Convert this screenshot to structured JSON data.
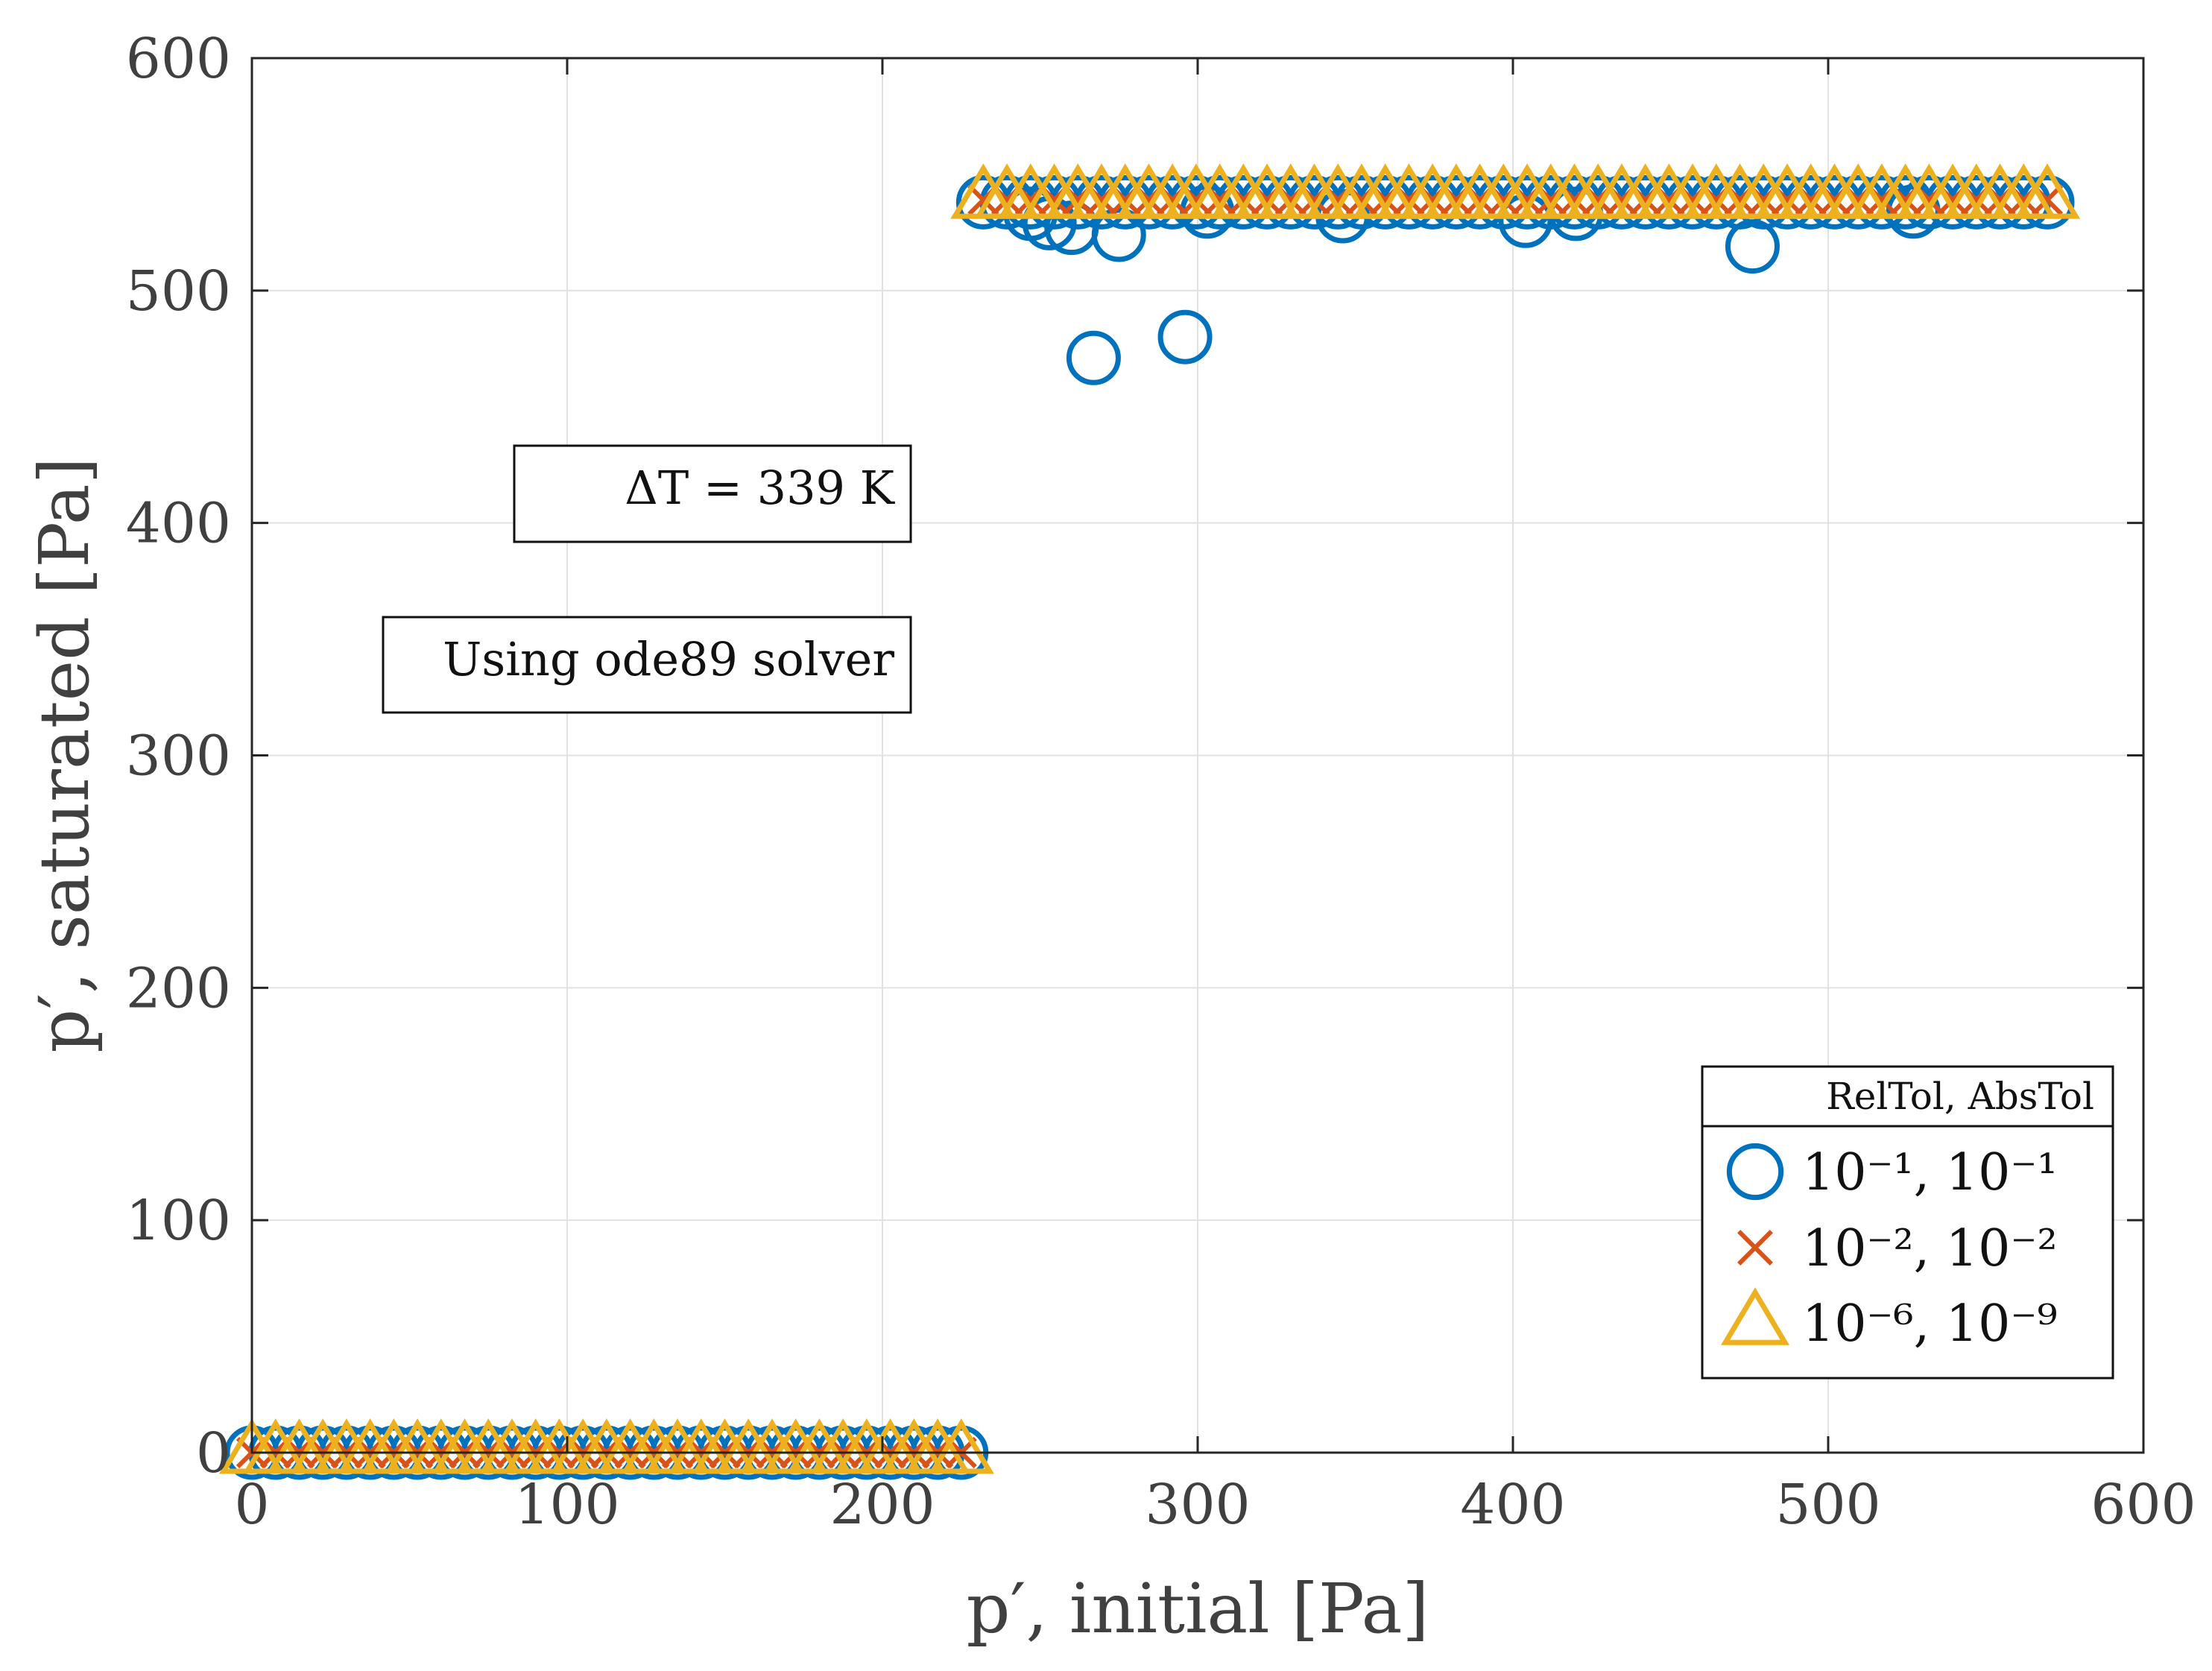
{
  "chart_data": {
    "type": "scatter",
    "xlabel": "p′, initial [Pa]",
    "ylabel": "p′, saturated [Pa]",
    "xlim": [
      0,
      600
    ],
    "ylim": [
      0,
      600
    ],
    "xticks": [
      0,
      100,
      200,
      300,
      400,
      500,
      600
    ],
    "yticks": [
      0,
      100,
      200,
      300,
      400,
      500,
      600
    ],
    "xtick_labels": [
      "0",
      "100",
      "200",
      "300",
      "400",
      "500",
      "600"
    ],
    "ytick_labels": [
      "0",
      "100",
      "200",
      "300",
      "400",
      "500",
      "600"
    ],
    "grid": true,
    "annotations": [
      "ΔT = 339 K",
      "Using ode89 solver"
    ],
    "legend": {
      "title": "RelTol,  AbsTol",
      "location": "bottom-right",
      "entries": [
        "10⁻¹, 10⁻¹",
        "10⁻², 10⁻²",
        "10⁻⁶, 10⁻⁹"
      ]
    },
    "series": [
      {
        "name": "10⁻¹, 10⁻¹",
        "marker": "circle",
        "color": "#0072BD",
        "low_branch": {
          "x_start": 0,
          "x_end": 225,
          "x_step": 7.5,
          "y": 0
        },
        "high_branch": {
          "x_start": 232,
          "x_end": 570,
          "x_step": 7.5,
          "y": 538
        },
        "outliers": [
          {
            "x": 247,
            "y": 533
          },
          {
            "x": 253,
            "y": 529
          },
          {
            "x": 260,
            "y": 527
          },
          {
            "x": 267,
            "y": 471
          },
          {
            "x": 275,
            "y": 524
          },
          {
            "x": 296,
            "y": 480
          },
          {
            "x": 303,
            "y": 534
          },
          {
            "x": 346,
            "y": 532
          },
          {
            "x": 404,
            "y": 530
          },
          {
            "x": 420,
            "y": 533
          },
          {
            "x": 476,
            "y": 519
          },
          {
            "x": 527,
            "y": 534
          }
        ]
      },
      {
        "name": "10⁻², 10⁻²",
        "marker": "x",
        "color": "#D95319",
        "low_branch": {
          "x_start": 0,
          "x_end": 225,
          "x_step": 7.5,
          "y": 0
        },
        "high_branch": {
          "x_start": 232,
          "x_end": 570,
          "x_step": 7.5,
          "y": 539
        },
        "outliers": []
      },
      {
        "name": "10⁻⁶, 10⁻⁹",
        "marker": "triangle",
        "color": "#EDB120",
        "low_branch": {
          "x_start": 0,
          "x_end": 225,
          "x_step": 7.5,
          "y": 0
        },
        "high_branch": {
          "x_start": 232,
          "x_end": 570,
          "x_step": 7.5,
          "y": 540
        },
        "outliers": []
      }
    ]
  }
}
